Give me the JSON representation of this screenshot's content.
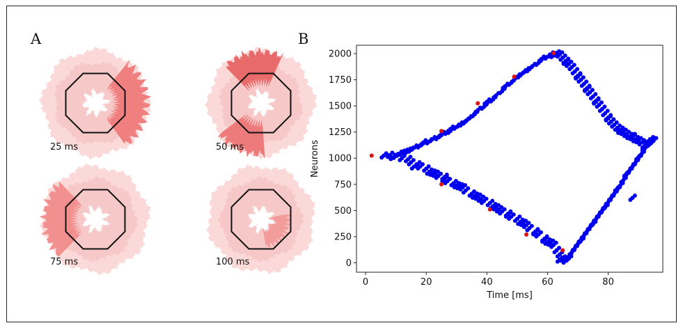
{
  "panel_a": {
    "letter": "A",
    "snapshots": [
      {
        "time_label": "25 ms",
        "active": [
          0
        ],
        "ring_color": "#f4a4a4"
      },
      {
        "time_label": "50 ms",
        "active": [
          1,
          3
        ],
        "ring_color": "#f4a4a4"
      },
      {
        "time_label": "75 ms",
        "active": [
          2
        ],
        "ring_color": "#f4a4a4"
      },
      {
        "time_label": "100 ms",
        "active": [],
        "ring_color": "#f4a4a4"
      }
    ]
  },
  "panel_b": {
    "letter": "B"
  },
  "chart_data": {
    "type": "scatter",
    "xlabel": "Time [ms]",
    "ylabel": "Neurons",
    "xlim": [
      -3,
      98
    ],
    "ylim": [
      -90,
      2080
    ],
    "xticks": [
      {
        "value": 0,
        "label": "0"
      },
      {
        "value": 20,
        "label": "20"
      },
      {
        "value": 40,
        "label": "40"
      },
      {
        "value": 60,
        "label": "60"
      },
      {
        "value": 80,
        "label": "80"
      }
    ],
    "yticks": [
      {
        "value": 0,
        "label": "0"
      },
      {
        "value": 250,
        "label": "250"
      },
      {
        "value": 500,
        "label": "500"
      },
      {
        "value": 750,
        "label": "750"
      },
      {
        "value": 1000,
        "label": "1000"
      },
      {
        "value": 1250,
        "label": "1250"
      },
      {
        "value": 1500,
        "label": "1500"
      },
      {
        "value": 1750,
        "label": "1750"
      },
      {
        "value": 2000,
        "label": "2000"
      }
    ],
    "series": [
      {
        "color": "#0000ee",
        "points": [
          [
            6,
            1025
          ],
          [
            8,
            1030
          ],
          [
            10,
            1020
          ],
          [
            11,
            1040
          ],
          [
            12,
            1000
          ],
          [
            13,
            1060
          ],
          [
            14,
            990
          ],
          [
            15,
            1080
          ],
          [
            15,
            960
          ],
          [
            16,
            1100
          ],
          [
            17,
            940
          ],
          [
            18,
            1120
          ],
          [
            18,
            920
          ],
          [
            19,
            1140
          ],
          [
            20,
            900
          ],
          [
            21,
            1160
          ],
          [
            21,
            870
          ],
          [
            22,
            1180
          ],
          [
            23,
            850
          ],
          [
            24,
            1200
          ],
          [
            24,
            830
          ],
          [
            25,
            1220
          ],
          [
            26,
            800
          ],
          [
            27,
            1250
          ],
          [
            27,
            780
          ],
          [
            28,
            1280
          ],
          [
            29,
            760
          ],
          [
            30,
            1300
          ],
          [
            30,
            740
          ],
          [
            31,
            1320
          ],
          [
            32,
            720
          ],
          [
            33,
            1350
          ],
          [
            33,
            690
          ],
          [
            34,
            1380
          ],
          [
            35,
            660
          ],
          [
            36,
            1420
          ],
          [
            36,
            640
          ],
          [
            37,
            1460
          ],
          [
            38,
            610
          ],
          [
            39,
            1490
          ],
          [
            39,
            590
          ],
          [
            40,
            1520
          ],
          [
            41,
            570
          ],
          [
            42,
            1560
          ],
          [
            42,
            540
          ],
          [
            43,
            1600
          ],
          [
            44,
            510
          ],
          [
            45,
            1640
          ],
          [
            45,
            490
          ],
          [
            46,
            1680
          ],
          [
            47,
            470
          ],
          [
            48,
            1720
          ],
          [
            48,
            440
          ],
          [
            49,
            1750
          ],
          [
            50,
            420
          ],
          [
            51,
            1790
          ],
          [
            51,
            390
          ],
          [
            52,
            1820
          ],
          [
            53,
            360
          ],
          [
            54,
            1850
          ],
          [
            54,
            330
          ],
          [
            55,
            1880
          ],
          [
            56,
            300
          ],
          [
            57,
            1910
          ],
          [
            57,
            270
          ],
          [
            58,
            1940
          ],
          [
            59,
            230
          ],
          [
            60,
            1970
          ],
          [
            60,
            200
          ],
          [
            61,
            1990
          ],
          [
            62,
            170
          ],
          [
            63,
            2000
          ],
          [
            63,
            120
          ],
          [
            64,
            1990
          ],
          [
            64,
            80
          ],
          [
            65,
            1960
          ],
          [
            65,
            40
          ],
          [
            66,
            1930
          ],
          [
            66,
            20
          ],
          [
            67,
            1900
          ],
          [
            67,
            60
          ],
          [
            68,
            1870
          ],
          [
            68,
            100
          ],
          [
            69,
            1830
          ],
          [
            69,
            140
          ],
          [
            70,
            1790
          ],
          [
            70,
            180
          ],
          [
            71,
            1750
          ],
          [
            71,
            220
          ],
          [
            72,
            1710
          ],
          [
            72,
            260
          ],
          [
            73,
            1670
          ],
          [
            73,
            300
          ],
          [
            74,
            1630
          ],
          [
            74,
            340
          ],
          [
            75,
            1590
          ],
          [
            75,
            380
          ],
          [
            76,
            1550
          ],
          [
            76,
            420
          ],
          [
            77,
            1510
          ],
          [
            77,
            460
          ],
          [
            78,
            1470
          ],
          [
            78,
            500
          ],
          [
            79,
            1430
          ],
          [
            79,
            540
          ],
          [
            80,
            1390
          ],
          [
            80,
            580
          ],
          [
            81,
            1350
          ],
          [
            81,
            620
          ],
          [
            82,
            1320
          ],
          [
            82,
            660
          ],
          [
            83,
            1290
          ],
          [
            83,
            700
          ],
          [
            84,
            1270
          ],
          [
            84,
            740
          ],
          [
            85,
            1250
          ],
          [
            85,
            790
          ],
          [
            86,
            1230
          ],
          [
            86,
            840
          ],
          [
            87,
            1210
          ],
          [
            87,
            880
          ],
          [
            88,
            1200
          ],
          [
            88,
            920
          ],
          [
            89,
            1180
          ],
          [
            89,
            960
          ],
          [
            90,
            1170
          ],
          [
            90,
            1000
          ],
          [
            91,
            1150
          ],
          [
            91,
            1040
          ],
          [
            92,
            1120
          ],
          [
            92,
            1090
          ],
          [
            93,
            1130
          ],
          [
            93,
            1160
          ],
          [
            94,
            1180
          ],
          [
            94,
            1140
          ],
          [
            88,
            620
          ],
          [
            95,
            1170
          ],
          [
            9,
            1010
          ],
          [
            12,
            1050
          ],
          [
            14,
            1070
          ],
          [
            16,
            920
          ],
          [
            19,
            1150
          ],
          [
            22,
            860
          ],
          [
            25,
            1230
          ],
          [
            26,
            820
          ],
          [
            28,
            1260
          ],
          [
            31,
            730
          ],
          [
            32,
            1330
          ],
          [
            35,
            1400
          ],
          [
            37,
            630
          ],
          [
            40,
            1540
          ],
          [
            43,
            530
          ],
          [
            46,
            1690
          ],
          [
            47,
            460
          ],
          [
            50,
            1780
          ],
          [
            52,
            380
          ],
          [
            53,
            1840
          ],
          [
            56,
            290
          ],
          [
            58,
            1950
          ],
          [
            59,
            220
          ],
          [
            61,
            190
          ],
          [
            62,
            1985
          ],
          [
            64,
            30
          ],
          [
            66,
            1920
          ],
          [
            67,
            40
          ],
          [
            70,
            1780
          ],
          [
            71,
            210
          ],
          [
            73,
            1660
          ],
          [
            75,
            370
          ],
          [
            76,
            1540
          ],
          [
            79,
            530
          ],
          [
            80,
            1380
          ],
          [
            83,
            710
          ],
          [
            84,
            1260
          ],
          [
            86,
            850
          ],
          [
            88,
            1210
          ],
          [
            90,
            1010
          ],
          [
            92,
            1100
          ],
          [
            94,
            1150
          ]
        ]
      },
      {
        "color": "#dd1111",
        "points": [
          [
            2,
            1025
          ],
          [
            25,
            1260
          ],
          [
            25,
            750
          ],
          [
            37,
            1525
          ],
          [
            41,
            510
          ],
          [
            49,
            1780
          ],
          [
            53,
            270
          ],
          [
            62,
            2005
          ],
          [
            65,
            120
          ]
        ]
      }
    ]
  }
}
